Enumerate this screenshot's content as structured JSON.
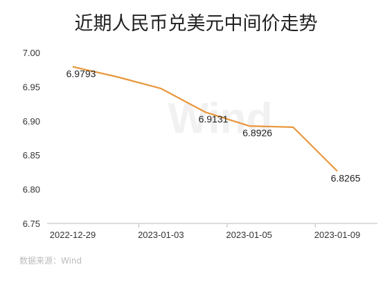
{
  "chart_data": {
    "type": "line",
    "title": "近期人民币兑美元中间价走势",
    "xlabel": "",
    "ylabel": "",
    "ylim": [
      6.75,
      7.0
    ],
    "yticks": [
      "7.00",
      "6.95",
      "6.90",
      "6.85",
      "6.80",
      "6.75"
    ],
    "x": [
      "2022-12-29",
      "2022-12-30",
      "2023-01-03",
      "2023-01-04",
      "2023-01-05",
      "2023-01-06",
      "2023-01-09"
    ],
    "xticks": [
      "2022-12-29",
      "2023-01-03",
      "2023-01-05",
      "2023-01-09"
    ],
    "series": [
      {
        "values": [
          6.9793,
          6.9646,
          6.9475,
          6.9131,
          6.8926,
          6.8908,
          6.8265
        ],
        "color": "#e8963a"
      }
    ],
    "data_labels": [
      {
        "index": 0,
        "text": "6.9793"
      },
      {
        "index": 3,
        "text": "6.9131"
      },
      {
        "index": 4,
        "text": "6.8926"
      },
      {
        "index": 6,
        "text": "6.8265"
      }
    ],
    "grid": false,
    "watermark": "Wind",
    "source": "数据来源：Wind"
  }
}
